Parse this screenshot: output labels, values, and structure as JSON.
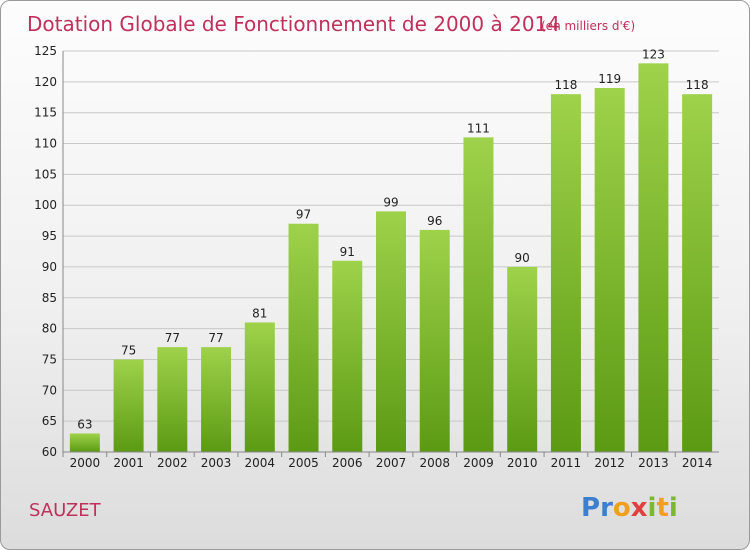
{
  "chart_data": {
    "type": "bar",
    "title": "Dotation Globale de Fonctionnement de 2000 à 2014",
    "subtitle": "(en milliers d'€)",
    "categories": [
      "2000",
      "2001",
      "2002",
      "2003",
      "2004",
      "2005",
      "2006",
      "2007",
      "2008",
      "2009",
      "2010",
      "2011",
      "2012",
      "2013",
      "2014"
    ],
    "values": [
      63,
      75,
      77,
      77,
      81,
      97,
      91,
      99,
      96,
      111,
      90,
      118,
      119,
      123,
      118
    ],
    "ylim": [
      60,
      125
    ],
    "yticks": [
      60,
      65,
      70,
      75,
      80,
      85,
      90,
      95,
      100,
      105,
      110,
      115,
      120,
      125
    ],
    "grid": true,
    "colors": {
      "bar_top": "#9ed24a",
      "bar_bottom": "#5c9a14",
      "title": "#c0305a"
    }
  },
  "commune": "SAUZET",
  "logo": {
    "letters": [
      "P",
      "r",
      "o",
      "x",
      "i",
      "t",
      "i"
    ],
    "colors": [
      "#3b7fd0",
      "#3b7fd0",
      "#f0a020",
      "#e04040",
      "#7ab830",
      "#f0a020",
      "#7ab830"
    ]
  }
}
